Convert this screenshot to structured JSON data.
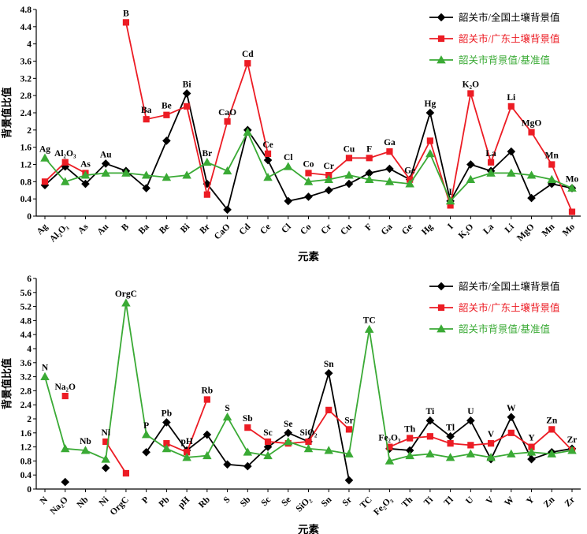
{
  "figure_title": "",
  "chart_data": [
    {
      "type": "line",
      "title": "",
      "xlabel": "元素",
      "ylabel": "背景值比值",
      "ylim": [
        0,
        4.8
      ],
      "ytick_step": 0.4,
      "grid": false,
      "legend_position": "top-right",
      "categories": [
        "Ag",
        "Al₂O₃",
        "As",
        "Au",
        "B",
        "Ba",
        "Be",
        "Bi",
        "Br",
        "CaO",
        "Cd",
        "Ce",
        "Cl",
        "Co",
        "Cr",
        "Cu",
        "F",
        "Ga",
        "Ge",
        "Hg",
        "I",
        "K₂O",
        "La",
        "Li",
        "MgO",
        "Mn",
        "Mo"
      ],
      "series": [
        {
          "name": "韶关市/全国土壤背景值",
          "color": "#000000",
          "marker": "diamond",
          "values": [
            0.72,
            1.15,
            0.75,
            1.22,
            1.05,
            0.65,
            1.75,
            2.85,
            0.75,
            0.15,
            2.0,
            1.3,
            0.35,
            0.45,
            0.6,
            0.75,
            1.0,
            1.1,
            0.85,
            2.4,
            0.35,
            1.2,
            1.05,
            1.5,
            0.42,
            0.75,
            0.65
          ]
        },
        {
          "name": "韶关市/广东土壤背景值",
          "color": "#ec1c24",
          "marker": "square",
          "values": [
            0.8,
            1.25,
            1.0,
            null,
            4.5,
            2.25,
            2.35,
            2.55,
            0.5,
            2.2,
            3.55,
            1.45,
            null,
            1.0,
            0.95,
            1.35,
            1.35,
            1.5,
            0.85,
            1.75,
            0.25,
            2.85,
            1.25,
            2.55,
            1.95,
            1.2,
            0.1
          ]
        },
        {
          "name": "韶关市背景值/基准值",
          "color": "#3aaa35",
          "marker": "triangle",
          "values": [
            1.35,
            0.8,
            0.95,
            1.0,
            1.0,
            0.95,
            0.9,
            0.95,
            1.25,
            1.05,
            1.95,
            0.9,
            1.15,
            0.8,
            0.85,
            0.95,
            0.85,
            0.8,
            0.75,
            1.45,
            0.35,
            0.85,
            1.0,
            1.0,
            0.95,
            0.85,
            0.65
          ]
        }
      ]
    },
    {
      "type": "line",
      "title": "",
      "xlabel": "元素",
      "ylabel": "背景值比值",
      "ylim": [
        0,
        6
      ],
      "ytick_step": 0.4,
      "grid": false,
      "legend_position": "top-right",
      "categories": [
        "N",
        "Na₂O",
        "Nb",
        "Ni",
        "OrgC",
        "P",
        "Pb",
        "pH",
        "Rb",
        "S",
        "Sb",
        "Sc",
        "Se",
        "SiO₂",
        "Sn",
        "Sr",
        "TC",
        "Fe₂O₃",
        "Th",
        "Ti",
        "Tl",
        "U",
        "V",
        "W",
        "Y",
        "Zn",
        "Zr"
      ],
      "series": [
        {
          "name": "韶关市/全国土壤背景值",
          "color": "#000000",
          "marker": "diamond",
          "values": [
            null,
            0.2,
            null,
            0.6,
            null,
            1.05,
            1.9,
            1.1,
            1.55,
            0.7,
            0.65,
            1.2,
            1.6,
            1.35,
            3.3,
            0.25,
            null,
            1.15,
            1.1,
            1.95,
            1.5,
            1.95,
            0.85,
            2.05,
            0.85,
            1.05,
            1.15
          ]
        },
        {
          "name": "韶关市/广东土壤背景值",
          "color": "#ec1c24",
          "marker": "square",
          "values": [
            null,
            2.65,
            null,
            1.35,
            0.45,
            null,
            1.3,
            1.05,
            2.55,
            null,
            1.75,
            1.35,
            1.3,
            1.35,
            2.25,
            1.7,
            null,
            1.2,
            1.45,
            1.5,
            1.3,
            1.25,
            1.3,
            1.6,
            1.2,
            1.7,
            1.1
          ]
        },
        {
          "name": "韶关市背景值/基准值",
          "color": "#3aaa35",
          "marker": "triangle",
          "values": [
            3.2,
            1.15,
            1.1,
            0.85,
            5.3,
            1.55,
            1.15,
            0.9,
            0.95,
            2.05,
            1.05,
            0.95,
            1.35,
            1.15,
            1.1,
            1.0,
            4.55,
            0.8,
            0.95,
            1.0,
            0.9,
            1.0,
            0.9,
            1.0,
            1.05,
            1.0,
            1.1
          ]
        }
      ]
    }
  ]
}
